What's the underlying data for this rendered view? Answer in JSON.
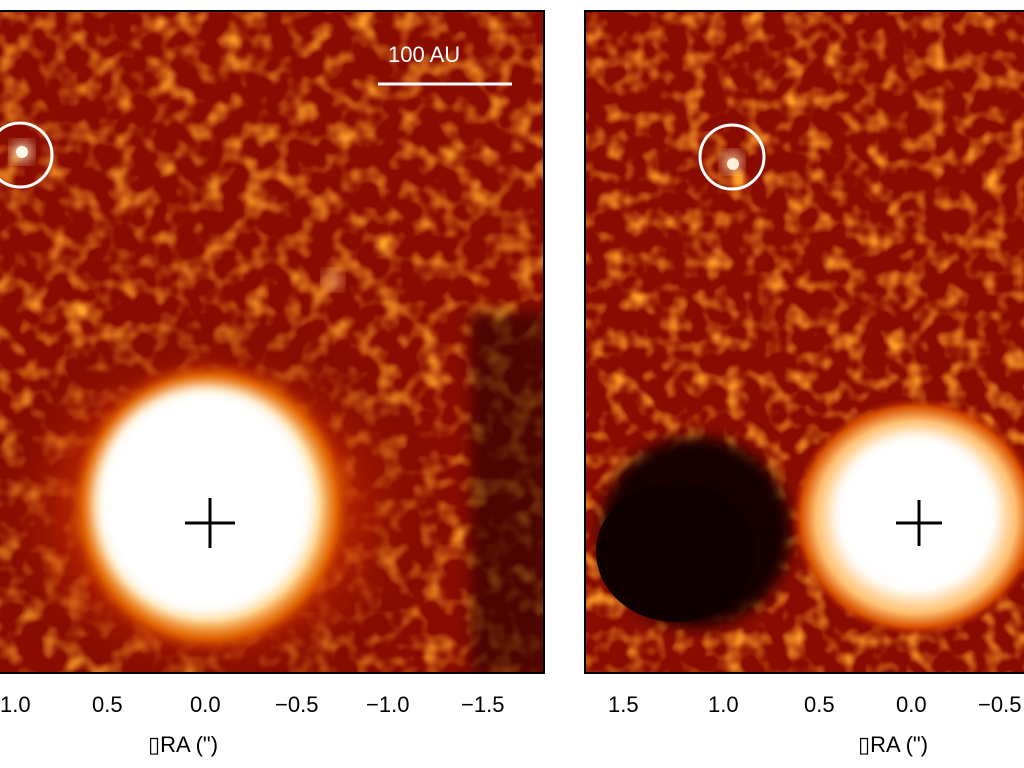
{
  "figure": {
    "panels": [
      {
        "id": "left",
        "scale_bar_label": "100 AU",
        "x_ticks": [
          "1.0",
          "0.5",
          "0.0",
          "−0.5",
          "−1.0",
          "−1.5"
        ],
        "x_axis_title": "▯RA (\")"
      },
      {
        "id": "right",
        "x_ticks": [
          "1.5",
          "1.0",
          "0.5",
          "0.0",
          "−0.5"
        ],
        "x_axis_title": "▯RA (\")"
      }
    ],
    "colors": {
      "background_dark": "#1a0000",
      "mid_red": "#a01000",
      "orange": "#e06000",
      "hot_white": "#fff8f0",
      "marker": "#ffffff",
      "cross": "#000000"
    },
    "icons": [
      "circle-marker-icon",
      "crosshair-icon"
    ]
  }
}
